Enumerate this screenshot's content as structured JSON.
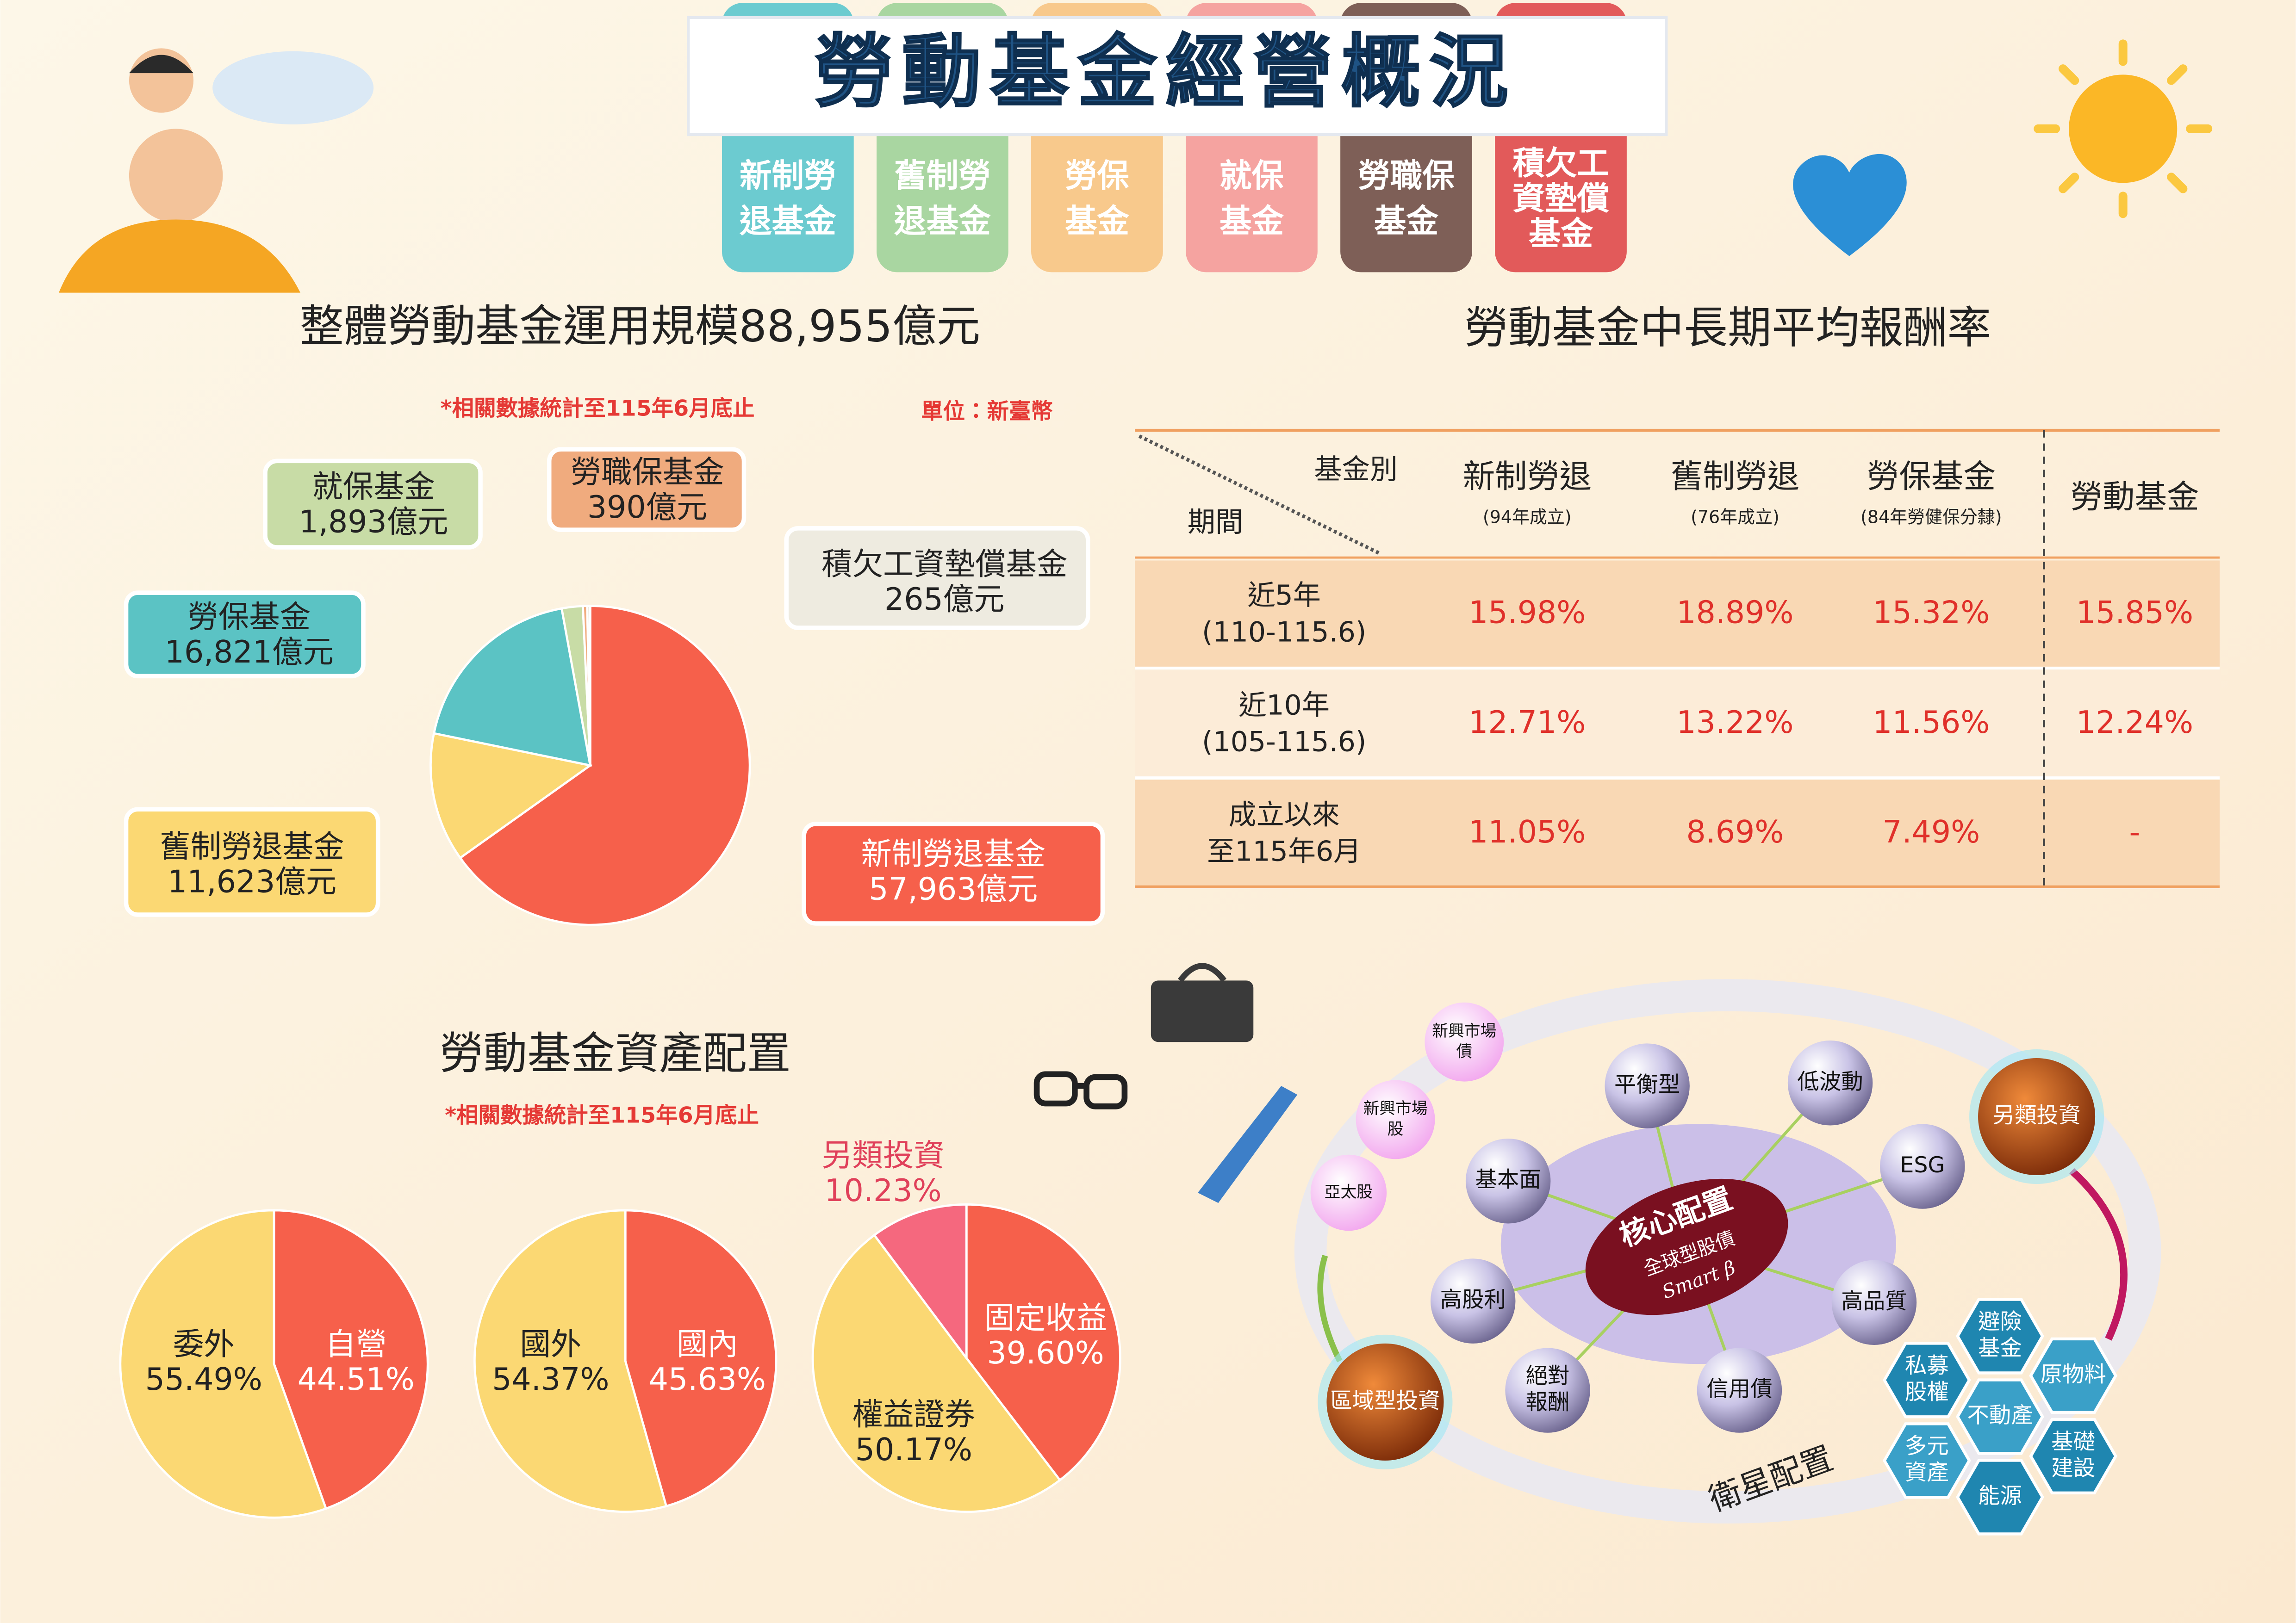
{
  "header": {
    "title": "勞動基金經營概況",
    "tabs": [
      [
        "新制勞",
        "退基金"
      ],
      [
        "舊制勞",
        "退基金"
      ],
      [
        "勞保",
        "基金"
      ],
      [
        "就保",
        "基金"
      ],
      [
        "勞職保",
        "基金"
      ],
      [
        "積欠工",
        "資墊償",
        "基金"
      ]
    ]
  },
  "chart_data": [
    {
      "type": "pie",
      "title": "整體勞動基金運用規模88,955億元",
      "note": "*相關數據統計至115年6月底止",
      "unit": "單位：新臺幣",
      "categories": [
        "新制勞退基金",
        "舊制勞退基金",
        "勞保基金",
        "就保基金",
        "勞職保基金",
        "積欠工資墊償基金"
      ],
      "values": [
        57963,
        11623,
        16821,
        1893,
        390,
        265
      ],
      "value_labels": [
        "57,963億元",
        "11,623億元",
        "16,821億元",
        "1,893億元",
        "390億元",
        "265億元"
      ],
      "colors": [
        "#f6604b",
        "#fbd873",
        "#5bc3c4",
        "#c8dca6",
        "#f0ab7e",
        "#e5e1d4"
      ]
    },
    {
      "type": "pie",
      "title": "勞動基金資產配置",
      "note": "*相關數據統計至115年6月底止",
      "categories": [
        "自營",
        "委外"
      ],
      "values": [
        44.51,
        55.49
      ],
      "value_labels": [
        "44.51%",
        "55.49%"
      ],
      "colors": [
        "#f6604b",
        "#fbd873"
      ]
    },
    {
      "type": "pie",
      "categories": [
        "國內",
        "國外"
      ],
      "values": [
        45.63,
        54.37
      ],
      "value_labels": [
        "45.63%",
        "54.37%"
      ],
      "colors": [
        "#f6604b",
        "#fbd873"
      ]
    },
    {
      "type": "pie",
      "categories": [
        "固定收益",
        "權益證券",
        "另類投資"
      ],
      "values": [
        39.6,
        50.17,
        10.23
      ],
      "value_labels": [
        "39.60%",
        "50.17%",
        "10.23%"
      ],
      "colors": [
        "#f6604b",
        "#fbd873",
        "#f5687e"
      ]
    }
  ],
  "table": {
    "title": "勞動基金中長期平均報酬率",
    "corner": {
      "column": "基金別",
      "row": "期間"
    },
    "columns": [
      {
        "name": "新制勞退",
        "note": "(94年成立)"
      },
      {
        "name": "舊制勞退",
        "note": "(76年成立)"
      },
      {
        "name": "勞保基金",
        "note": "(84年勞健保分隸)"
      },
      {
        "name": "勞動基金"
      }
    ],
    "rows": [
      {
        "period": [
          "近5年",
          "(110-115.6)"
        ],
        "values": [
          "15.98%",
          "18.89%",
          "15.32%",
          "15.85%"
        ]
      },
      {
        "period": [
          "近10年",
          "(105-115.6)"
        ],
        "values": [
          "12.71%",
          "13.22%",
          "11.56%",
          "12.24%"
        ]
      },
      {
        "period": [
          "成立以來",
          "至115年6月"
        ],
        "values": [
          "11.05%",
          "8.69%",
          "7.49%",
          "-"
        ]
      }
    ]
  },
  "diagram": {
    "core": [
      "核心配置",
      "全球型股債",
      "Smart β"
    ],
    "satellite": "衛星配置",
    "factors": [
      [
        "平衡型"
      ],
      [
        "低波動"
      ],
      [
        "ESG"
      ],
      [
        "高品質"
      ],
      [
        "信用債"
      ],
      [
        "絕對",
        "報酬"
      ],
      [
        "高股利"
      ],
      [
        "基本面"
      ]
    ],
    "markets": [
      [
        "新興市場",
        "債"
      ],
      [
        "新興市場",
        "股"
      ],
      [
        "亞太股"
      ]
    ],
    "strategies": [
      "區域型投資",
      "另類投資"
    ],
    "alternatives": [
      [
        "避險",
        "基金"
      ],
      [
        "原物料"
      ],
      [
        "私募",
        "股權"
      ],
      [
        "不動產"
      ],
      [
        "基礎",
        "建設"
      ],
      [
        "多元",
        "資產"
      ],
      [
        "能源"
      ]
    ]
  }
}
